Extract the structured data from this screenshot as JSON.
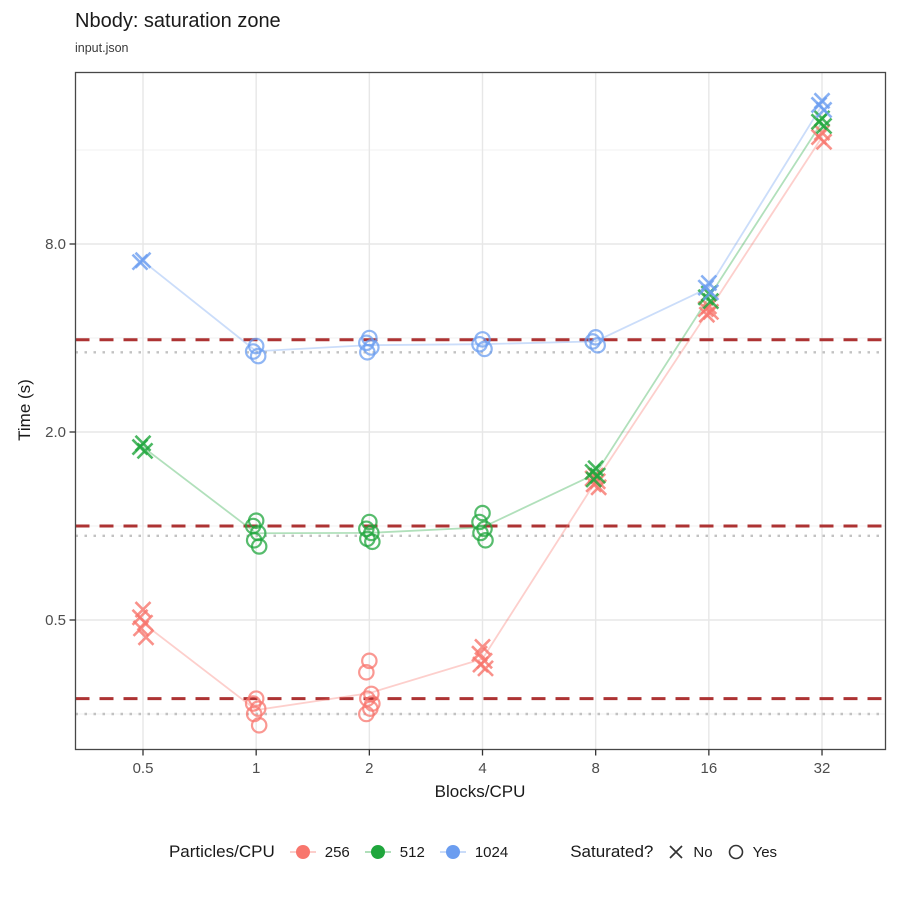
{
  "header": {
    "title": "Nbody: saturation zone",
    "subtitle": "input.json"
  },
  "axes": {
    "x": {
      "label": "Blocks/CPU",
      "tick_labels": [
        "0.5",
        "1",
        "2",
        "4",
        "8",
        "16",
        "32"
      ],
      "ticks": [
        0.5,
        1,
        2,
        4,
        8,
        16,
        32
      ],
      "scale": "log2"
    },
    "y": {
      "label": "Time (s)",
      "tick_labels": [
        "0.5",
        "2.0",
        "8.0"
      ],
      "ticks": [
        0.5,
        2.0,
        8.0
      ],
      "minor_ticks": [
        0.25,
        1.0,
        4.0,
        16.0
      ],
      "scale": "log2"
    }
  },
  "colors": {
    "background": "#FFFFFF",
    "panel_border": "#474747",
    "grid_major": "#E7E7E7",
    "grid_minor": "#F2F2F2",
    "dashed_ref": "#AD3333",
    "dotted_ref": "#C2C2C2",
    "tick_text": "#4D4D4D",
    "text": "#1A1A1A",
    "shape_key": "#333333",
    "series_red": "#F8766D",
    "series_green": "#1FA63C",
    "series_blue": "#6B9DF0"
  },
  "legend": {
    "color": {
      "title": "Particles/CPU",
      "items": [
        {
          "label": "256",
          "color": "#F8766D"
        },
        {
          "label": "512",
          "color": "#1FA63C"
        },
        {
          "label": "1024",
          "color": "#6B9DF0"
        }
      ]
    },
    "shape": {
      "title": "Saturated?",
      "items": [
        {
          "label": "No",
          "shape": "x"
        },
        {
          "label": "Yes",
          "shape": "circle"
        }
      ]
    }
  },
  "chart_data": {
    "type": "scatter",
    "title": "Nbody: saturation zone",
    "subtitle": "input.json",
    "xlabel": "Blocks/CPU",
    "ylabel": "Time (s)",
    "x_scale": "log2",
    "y_scale": "log2",
    "x_ticks": [
      0.5,
      1,
      2,
      4,
      8,
      16,
      32
    ],
    "y_ticks": [
      0.5,
      2.0,
      8.0
    ],
    "y_minor": [
      0.25,
      1.0,
      4.0,
      16.0
    ],
    "x_range": [
      0.33,
      46
    ],
    "y_range": [
      0.19,
      28
    ],
    "grid": true,
    "legend_position": "bottom",
    "series": [
      {
        "name": "256",
        "color": "#F8766D",
        "clusters": [
          {
            "x": 0.5,
            "saturated": false,
            "values": [
              0.54,
              0.51,
              0.49,
              0.47,
              0.44
            ]
          },
          {
            "x": 1,
            "saturated": true,
            "values": [
              0.28,
              0.27,
              0.26,
              0.25,
              0.23
            ]
          },
          {
            "x": 2,
            "saturated": true,
            "values": [
              0.37,
              0.34,
              0.29,
              0.28,
              0.27,
              0.26,
              0.25
            ]
          },
          {
            "x": 4,
            "saturated": false,
            "values": [
              0.41,
              0.39,
              0.37,
              0.36,
              0.35
            ]
          },
          {
            "x": 8,
            "saturated": false,
            "values": [
              1.45,
              1.42,
              1.39,
              1.36,
              1.33
            ]
          },
          {
            "x": 16,
            "saturated": false,
            "values": [
              5.05,
              4.95,
              4.85,
              4.75
            ]
          },
          {
            "x": 32,
            "saturated": false,
            "values": [
              18.2,
              17.6,
              17.0
            ]
          }
        ]
      },
      {
        "name": "512",
        "color": "#1FA63C",
        "clusters": [
          {
            "x": 0.5,
            "saturated": false,
            "values": [
              1.84,
              1.79,
              1.74
            ]
          },
          {
            "x": 1,
            "saturated": true,
            "values": [
              1.04,
              1.0,
              0.95,
              0.9,
              0.86
            ]
          },
          {
            "x": 2,
            "saturated": true,
            "values": [
              1.03,
              0.98,
              0.95,
              0.91,
              0.89
            ]
          },
          {
            "x": 4,
            "saturated": true,
            "values": [
              1.1,
              1.03,
              0.98,
              0.95,
              0.9
            ]
          },
          {
            "x": 8,
            "saturated": false,
            "values": [
              1.53,
              1.49,
              1.45,
              1.41
            ]
          },
          {
            "x": 16,
            "saturated": false,
            "values": [
              5.55,
              5.4,
              5.25
            ]
          },
          {
            "x": 32,
            "saturated": false,
            "values": [
              20.2,
              19.7,
              19.1
            ]
          }
        ]
      },
      {
        "name": "1024",
        "color": "#6B9DF0",
        "clusters": [
          {
            "x": 0.5,
            "saturated": false,
            "values": [
              7.1,
              7.0
            ]
          },
          {
            "x": 1,
            "saturated": true,
            "values": [
              3.77,
              3.62,
              3.5
            ]
          },
          {
            "x": 2,
            "saturated": true,
            "values": [
              4.0,
              3.86,
              3.73,
              3.6
            ]
          },
          {
            "x": 4,
            "saturated": true,
            "values": [
              3.96,
              3.82,
              3.69
            ]
          },
          {
            "x": 8,
            "saturated": true,
            "values": [
              4.02,
              3.9,
              3.79
            ]
          },
          {
            "x": 16,
            "saturated": false,
            "values": [
              6.0,
              5.8,
              5.6
            ]
          },
          {
            "x": 32,
            "saturated": false,
            "values": [
              23.0,
              22.3,
              21.5
            ]
          }
        ]
      }
    ],
    "reference_lines": [
      {
        "style": "dashed",
        "color": "#AD3333",
        "values": [
          3.95,
          1.0,
          0.28
        ]
      },
      {
        "style": "dotted",
        "color": "#C2C2C2",
        "values": [
          3.6,
          0.93,
          0.25
        ]
      }
    ]
  }
}
